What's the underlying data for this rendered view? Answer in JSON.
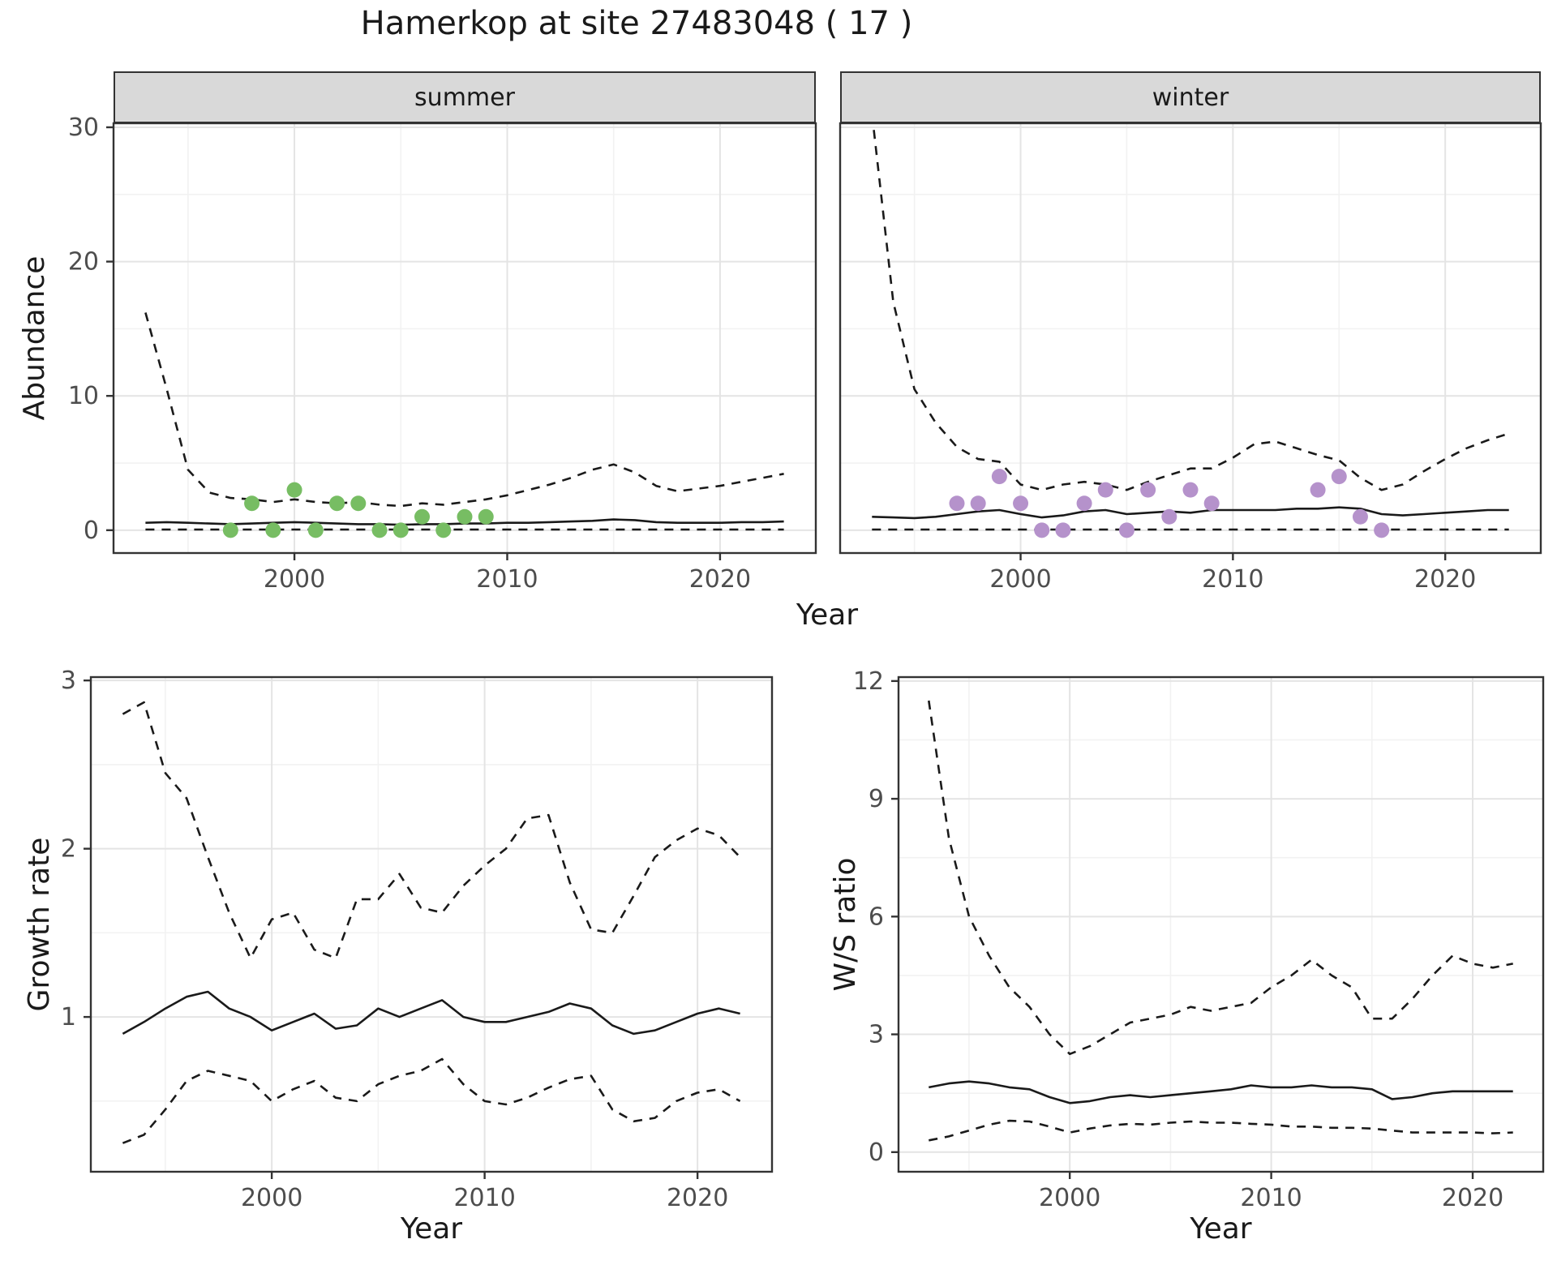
{
  "title": "Hamerkop at site 27483048 ( 17 )",
  "facets": {
    "summer_label": "summer",
    "winter_label": "winter"
  },
  "axes": {
    "year_label": "Year",
    "abundance_label": "Abundance",
    "growth_label": "Growth rate",
    "ws_label": "W/S ratio"
  },
  "colors": {
    "summer_points": "#77bd63",
    "winter_points": "#b592cb",
    "line": "#1a1a1a",
    "panel_border": "#333333",
    "grid_major": "#e4e4e4",
    "grid_minor": "#f2f2f2",
    "strip_bg": "#d9d9d9"
  },
  "chart_data": [
    {
      "id": "abundance-summer",
      "type": "line",
      "facet": "summer",
      "ylabel": "Abundance",
      "xlabel": "Year",
      "x": [
        1993,
        1994,
        1995,
        1996,
        1997,
        1998,
        1999,
        2000,
        2001,
        2002,
        2003,
        2004,
        2005,
        2006,
        2007,
        2008,
        2009,
        2010,
        2011,
        2012,
        2013,
        2014,
        2015,
        2016,
        2017,
        2018,
        2019,
        2020,
        2021,
        2022,
        2023
      ],
      "series": [
        {
          "name": "upper_ci",
          "style": "dashed",
          "values": [
            16.2,
            10.5,
            4.5,
            2.8,
            2.4,
            2.3,
            2.1,
            2.3,
            2.1,
            2.0,
            2.1,
            1.9,
            1.8,
            2.0,
            1.9,
            2.1,
            2.3,
            2.6,
            3.0,
            3.4,
            3.9,
            4.5,
            4.9,
            4.3,
            3.3,
            2.9,
            3.1,
            3.3,
            3.6,
            3.9,
            4.2
          ]
        },
        {
          "name": "mean",
          "style": "solid",
          "values": [
            0.55,
            0.6,
            0.55,
            0.5,
            0.45,
            0.5,
            0.55,
            0.6,
            0.55,
            0.5,
            0.45,
            0.45,
            0.4,
            0.45,
            0.45,
            0.5,
            0.5,
            0.55,
            0.55,
            0.6,
            0.65,
            0.7,
            0.8,
            0.75,
            0.6,
            0.55,
            0.55,
            0.55,
            0.6,
            0.6,
            0.65
          ]
        },
        {
          "name": "lower_ci",
          "style": "dashed",
          "values": [
            0.05,
            0.05,
            0.05,
            0.05,
            0.05,
            0.05,
            0.05,
            0.05,
            0.05,
            0.05,
            0.05,
            0.05,
            0.05,
            0.05,
            0.05,
            0.05,
            0.05,
            0.05,
            0.05,
            0.05,
            0.05,
            0.05,
            0.05,
            0.05,
            0.05,
            0.05,
            0.05,
            0.05,
            0.05,
            0.05,
            0.05
          ]
        }
      ],
      "points": {
        "name": "observed_counts_summer",
        "color": "#77bd63",
        "data": [
          [
            1997,
            0
          ],
          [
            1998,
            2
          ],
          [
            1999,
            0
          ],
          [
            2000,
            3
          ],
          [
            2001,
            0
          ],
          [
            2002,
            2
          ],
          [
            2003,
            2
          ],
          [
            2004,
            0
          ],
          [
            2005,
            0
          ],
          [
            2006,
            1
          ],
          [
            2007,
            0
          ],
          [
            2008,
            1
          ],
          [
            2009,
            1
          ]
        ]
      },
      "xlim": [
        1991.5,
        2024.5
      ],
      "ylim": [
        -1.7,
        30.3
      ],
      "xticks": [
        2000,
        2010,
        2020
      ],
      "yticks": [
        0,
        10,
        20,
        30
      ],
      "xminor": [
        1995,
        2005,
        2015
      ],
      "yminor": [
        5,
        15,
        25
      ],
      "show_y_labels": true
    },
    {
      "id": "abundance-winter",
      "type": "line",
      "facet": "winter",
      "ylabel": "Abundance",
      "xlabel": "Year",
      "x": [
        1993,
        1994,
        1995,
        1996,
        1997,
        1998,
        1999,
        2000,
        2001,
        2002,
        2003,
        2004,
        2005,
        2006,
        2007,
        2008,
        2009,
        2010,
        2011,
        2012,
        2013,
        2014,
        2015,
        2016,
        2017,
        2018,
        2019,
        2020,
        2021,
        2022,
        2023
      ],
      "series": [
        {
          "name": "upper_ci",
          "style": "dashed",
          "values": [
            31.0,
            17.0,
            10.5,
            8.0,
            6.2,
            5.3,
            5.1,
            3.4,
            3.0,
            3.4,
            3.6,
            3.4,
            3.0,
            3.6,
            4.1,
            4.6,
            4.6,
            5.4,
            6.4,
            6.6,
            6.1,
            5.6,
            5.2,
            3.9,
            3.0,
            3.4,
            4.4,
            5.3,
            6.1,
            6.7,
            7.2
          ]
        },
        {
          "name": "mean",
          "style": "solid",
          "values": [
            1.0,
            0.95,
            0.9,
            1.0,
            1.2,
            1.4,
            1.5,
            1.2,
            0.95,
            1.1,
            1.4,
            1.5,
            1.2,
            1.3,
            1.4,
            1.3,
            1.5,
            1.5,
            1.5,
            1.5,
            1.6,
            1.6,
            1.7,
            1.6,
            1.2,
            1.1,
            1.2,
            1.3,
            1.4,
            1.5,
            1.5
          ]
        },
        {
          "name": "lower_ci",
          "style": "dashed",
          "values": [
            0.05,
            0.05,
            0.05,
            0.05,
            0.05,
            0.05,
            0.05,
            0.05,
            0.05,
            0.05,
            0.05,
            0.05,
            0.05,
            0.05,
            0.05,
            0.05,
            0.05,
            0.05,
            0.05,
            0.05,
            0.05,
            0.05,
            0.05,
            0.05,
            0.05,
            0.05,
            0.05,
            0.05,
            0.05,
            0.05,
            0.05
          ]
        }
      ],
      "points": {
        "name": "observed_counts_winter",
        "color": "#b592cb",
        "data": [
          [
            1997,
            2
          ],
          [
            1998,
            2
          ],
          [
            1999,
            4
          ],
          [
            2000,
            2
          ],
          [
            2001,
            0
          ],
          [
            2002,
            0
          ],
          [
            2003,
            2
          ],
          [
            2004,
            3
          ],
          [
            2005,
            0
          ],
          [
            2006,
            3
          ],
          [
            2007,
            1
          ],
          [
            2008,
            3
          ],
          [
            2009,
            2
          ],
          [
            2014,
            3
          ],
          [
            2015,
            4
          ],
          [
            2016,
            1
          ],
          [
            2017,
            0
          ]
        ]
      },
      "xlim": [
        1991.5,
        2024.5
      ],
      "ylim": [
        -1.7,
        30.3
      ],
      "xticks": [
        2000,
        2010,
        2020
      ],
      "yticks": [
        0,
        10,
        20,
        30
      ],
      "xminor": [
        1995,
        2005,
        2015
      ],
      "yminor": [
        5,
        15,
        25
      ],
      "show_y_labels": false
    },
    {
      "id": "growth-rate",
      "type": "line",
      "ylabel": "Growth rate",
      "xlabel": "Year",
      "x": [
        1993,
        1994,
        1995,
        1996,
        1997,
        1998,
        1999,
        2000,
        2001,
        2002,
        2003,
        2004,
        2005,
        2006,
        2007,
        2008,
        2009,
        2010,
        2011,
        2012,
        2013,
        2014,
        2015,
        2016,
        2017,
        2018,
        2019,
        2020,
        2021,
        2022
      ],
      "series": [
        {
          "name": "upper_ci",
          "style": "dashed",
          "values": [
            2.8,
            2.87,
            2.45,
            2.3,
            1.95,
            1.62,
            1.35,
            1.58,
            1.62,
            1.4,
            1.35,
            1.7,
            1.7,
            1.85,
            1.65,
            1.62,
            1.78,
            1.9,
            2.0,
            2.18,
            2.2,
            1.8,
            1.52,
            1.5,
            1.72,
            1.95,
            2.05,
            2.12,
            2.08,
            1.95
          ]
        },
        {
          "name": "mean",
          "style": "solid",
          "values": [
            0.9,
            0.97,
            1.05,
            1.12,
            1.15,
            1.05,
            1.0,
            0.92,
            0.97,
            1.02,
            0.93,
            0.95,
            1.05,
            1.0,
            1.05,
            1.1,
            1.0,
            0.97,
            0.97,
            1.0,
            1.03,
            1.08,
            1.05,
            0.95,
            0.9,
            0.92,
            0.97,
            1.02,
            1.05,
            1.02
          ]
        },
        {
          "name": "lower_ci",
          "style": "dashed",
          "values": [
            0.25,
            0.3,
            0.45,
            0.62,
            0.68,
            0.65,
            0.62,
            0.5,
            0.57,
            0.62,
            0.52,
            0.5,
            0.6,
            0.65,
            0.68,
            0.75,
            0.6,
            0.5,
            0.48,
            0.52,
            0.58,
            0.63,
            0.65,
            0.45,
            0.38,
            0.4,
            0.5,
            0.55,
            0.57,
            0.5
          ]
        }
      ],
      "xlim": [
        1991.5,
        2023.5
      ],
      "ylim": [
        0.08,
        3.02
      ],
      "xticks": [
        2000,
        2010,
        2020
      ],
      "yticks": [
        1,
        2,
        3
      ],
      "xminor": [
        1995,
        2005,
        2015
      ],
      "yminor": [
        0.5,
        1.5,
        2.5
      ],
      "show_y_labels": true
    },
    {
      "id": "ws-ratio",
      "type": "line",
      "ylabel": "W/S ratio",
      "xlabel": "Year",
      "x": [
        1993,
        1994,
        1995,
        1996,
        1997,
        1998,
        1999,
        2000,
        2001,
        2002,
        2003,
        2004,
        2005,
        2006,
        2007,
        2008,
        2009,
        2010,
        2011,
        2012,
        2013,
        2014,
        2015,
        2016,
        2017,
        2018,
        2019,
        2020,
        2021,
        2022
      ],
      "series": [
        {
          "name": "upper_ci",
          "style": "dashed",
          "values": [
            11.5,
            8.0,
            6.0,
            5.0,
            4.2,
            3.7,
            3.0,
            2.5,
            2.7,
            3.0,
            3.3,
            3.4,
            3.5,
            3.7,
            3.6,
            3.7,
            3.8,
            4.2,
            4.5,
            4.9,
            4.5,
            4.2,
            3.4,
            3.4,
            3.9,
            4.5,
            5.0,
            4.8,
            4.7,
            4.8
          ]
        },
        {
          "name": "mean",
          "style": "solid",
          "values": [
            1.65,
            1.75,
            1.8,
            1.75,
            1.65,
            1.6,
            1.4,
            1.25,
            1.3,
            1.4,
            1.45,
            1.4,
            1.45,
            1.5,
            1.55,
            1.6,
            1.7,
            1.65,
            1.65,
            1.7,
            1.65,
            1.65,
            1.6,
            1.35,
            1.4,
            1.5,
            1.55,
            1.55,
            1.55,
            1.55
          ]
        },
        {
          "name": "lower_ci",
          "style": "dashed",
          "values": [
            0.3,
            0.4,
            0.55,
            0.7,
            0.8,
            0.78,
            0.65,
            0.5,
            0.6,
            0.68,
            0.72,
            0.7,
            0.75,
            0.78,
            0.75,
            0.75,
            0.72,
            0.7,
            0.65,
            0.65,
            0.62,
            0.62,
            0.6,
            0.55,
            0.5,
            0.5,
            0.5,
            0.5,
            0.48,
            0.5
          ]
        }
      ],
      "xlim": [
        1991.5,
        2023.5
      ],
      "ylim": [
        -0.5,
        12.1
      ],
      "xticks": [
        2000,
        2010,
        2020
      ],
      "yticks": [
        0,
        3,
        6,
        9,
        12
      ],
      "xminor": [
        1995,
        2005,
        2015
      ],
      "yminor": [
        1.5,
        4.5,
        7.5,
        10.5
      ],
      "show_y_labels": true
    }
  ]
}
